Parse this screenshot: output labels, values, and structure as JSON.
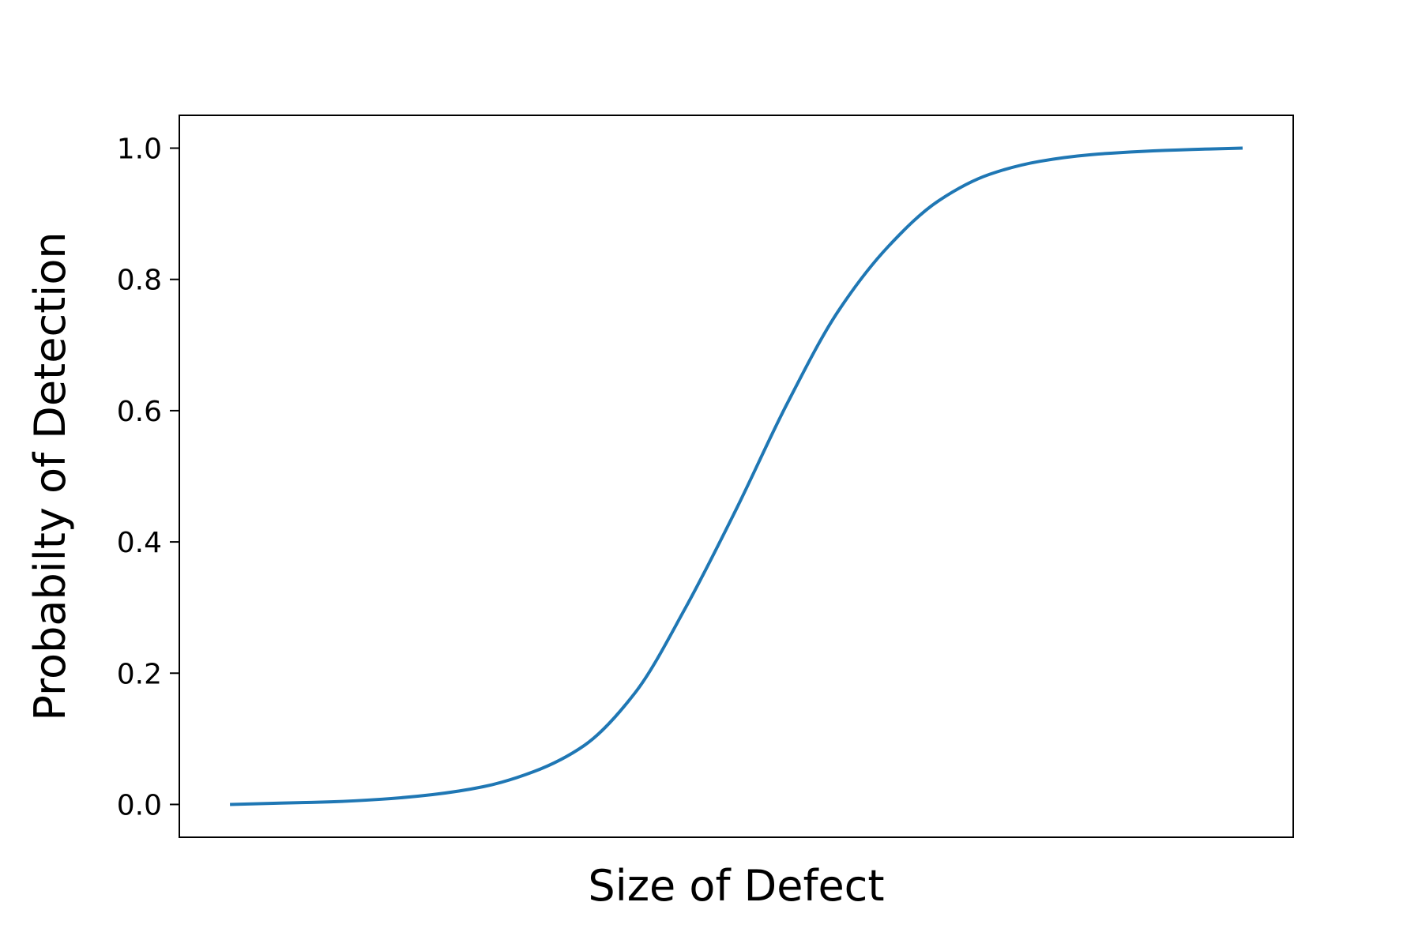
{
  "chart_data": {
    "type": "line",
    "title": "",
    "xlabel": "Size of Defect",
    "ylabel": "Probabilty of Detection",
    "x_ticks_shown": false,
    "ylim": [
      -0.05,
      1.05
    ],
    "yticks": [
      0.0,
      0.2,
      0.4,
      0.6,
      0.8,
      1.0
    ],
    "ytick_labels": [
      "0.0",
      "0.2",
      "0.4",
      "0.6",
      "0.8",
      "1.0"
    ],
    "grid": false,
    "legend": "none",
    "line_color": "#1f77b4",
    "series": [
      {
        "x": [
          0.0,
          0.05,
          0.1,
          0.15,
          0.2,
          0.25,
          0.3,
          0.35,
          0.4,
          0.45,
          0.5,
          0.55,
          0.6,
          0.65,
          0.7,
          0.75,
          0.8,
          0.85,
          0.9,
          0.95,
          1.0
        ],
        "y": [
          0.0,
          0.002,
          0.004,
          0.008,
          0.015,
          0.027,
          0.05,
          0.09,
          0.17,
          0.3,
          0.45,
          0.61,
          0.75,
          0.85,
          0.92,
          0.96,
          0.98,
          0.99,
          0.995,
          0.998,
          1.0
        ]
      }
    ]
  }
}
